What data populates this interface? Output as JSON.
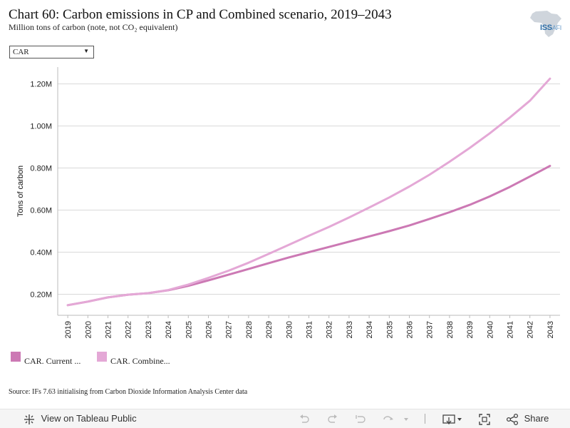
{
  "header": {
    "title": "Chart 60: Carbon emissions in CP and Combined scenario, 2019–2043",
    "subtitle": "Million tons of carbon (note, not CO₂ equivalent)"
  },
  "logo": {
    "text_main": "ISS",
    "text_sub": "AFI"
  },
  "filter": {
    "selected": "CAR"
  },
  "chart_data": {
    "type": "line",
    "x": [
      2019,
      2020,
      2021,
      2022,
      2023,
      2024,
      2025,
      2026,
      2027,
      2028,
      2029,
      2030,
      2031,
      2032,
      2033,
      2034,
      2035,
      2036,
      2037,
      2038,
      2039,
      2040,
      2041,
      2042,
      2043
    ],
    "x_tick_labels": [
      "2019",
      "2020",
      "2021",
      "2022",
      "2023",
      "2024",
      "2025",
      "2026",
      "2027",
      "2028",
      "2029",
      "2030",
      "2031",
      "2032",
      "2033",
      "2034",
      "2035",
      "2036",
      "2037",
      "2038",
      "2039",
      "2040",
      "2041",
      "2042",
      "2043"
    ],
    "ylabel": "Tons of carbon",
    "ylim": [
      0.1,
      1.28
    ],
    "y_ticks": [
      0.2,
      0.4,
      0.6,
      0.8,
      1.0,
      1.2
    ],
    "y_tick_labels": [
      "0.20M",
      "0.40M",
      "0.60M",
      "0.80M",
      "1.00M",
      "1.20M"
    ],
    "grid": true,
    "series": [
      {
        "name": "CAR. Current ...",
        "color": "#cc79b4",
        "values": [
          0.148,
          0.165,
          0.185,
          0.198,
          0.205,
          0.219,
          0.24,
          0.266,
          0.293,
          0.32,
          0.348,
          0.375,
          0.4,
          0.425,
          0.45,
          0.475,
          0.5,
          0.527,
          0.558,
          0.59,
          0.625,
          0.665,
          0.71,
          0.76,
          0.81
        ]
      },
      {
        "name": "CAR. Combine...",
        "color": "#e4a8d6",
        "values": [
          0.148,
          0.165,
          0.185,
          0.198,
          0.205,
          0.22,
          0.246,
          0.278,
          0.312,
          0.35,
          0.392,
          0.435,
          0.478,
          0.52,
          0.565,
          0.612,
          0.66,
          0.712,
          0.768,
          0.83,
          0.895,
          0.965,
          1.04,
          1.12,
          1.225
        ]
      }
    ]
  },
  "source": "Source: IFs 7.63 initialising from Carbon Dioxide Information Analysis Center data",
  "toolbar": {
    "view_label": "View on Tableau Public",
    "share_label": "Share"
  }
}
